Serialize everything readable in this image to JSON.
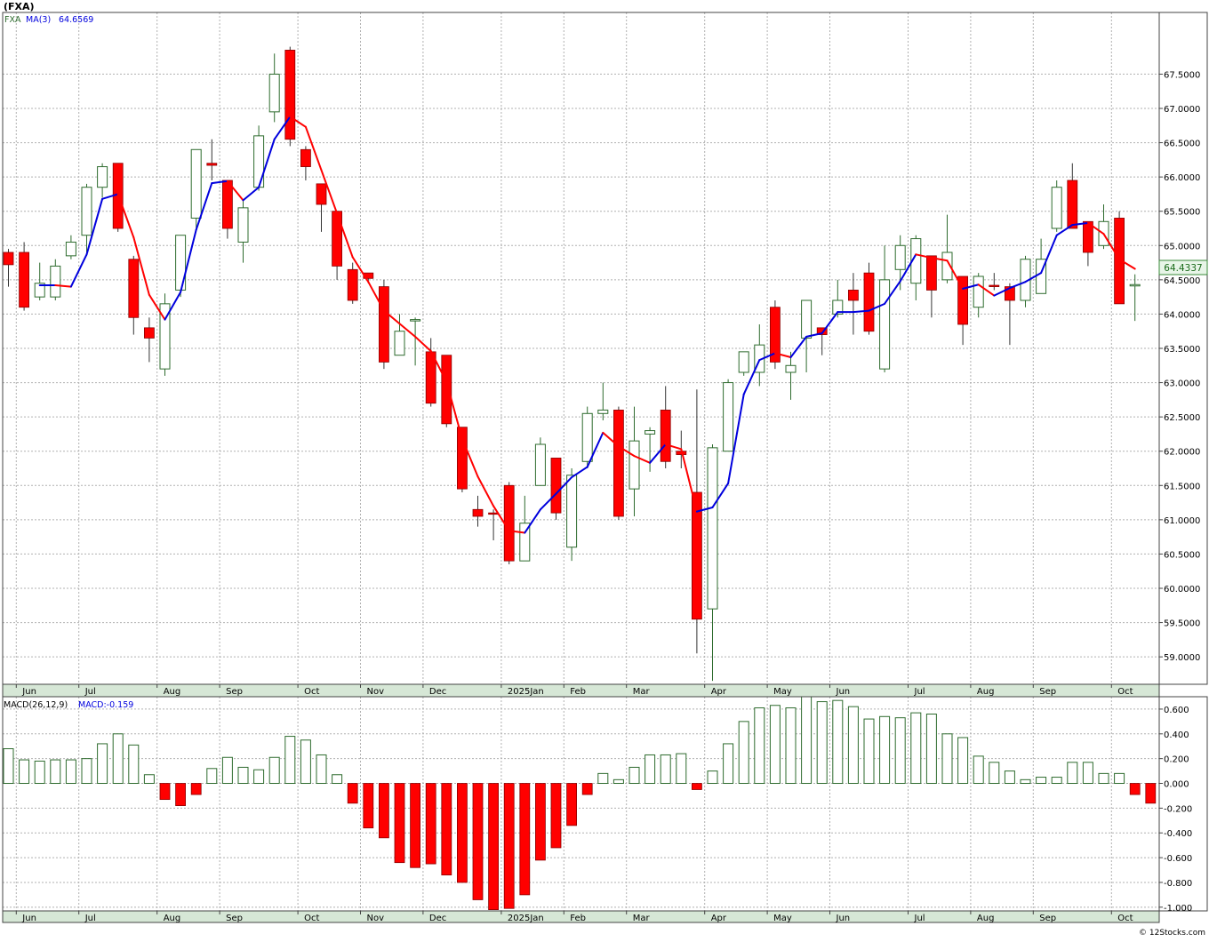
{
  "header": {
    "ticker": "(FXA)",
    "legend_symbol": "FXA",
    "legend_ma_label": "MA(3)",
    "legend_ma_value": "64.6569",
    "macd_label": "MACD(26,12,9)",
    "macd_value_label": "MACD:-0.159",
    "last_price": "64.4337",
    "watermark": "© 12Stocks.com"
  },
  "colors": {
    "up": "#2e6b2e",
    "down": "#ff0000",
    "ma_up": "#0000dd",
    "ma_down": "#ff0000",
    "grid": "#b0b0b0",
    "axis_bg": "#d6e7d6",
    "price_badge_bg": "#e8f5e8",
    "price_badge_text": "#1a6b1a"
  },
  "chart_data": [
    {
      "type": "candlestick",
      "title": "(FXA)",
      "interval": "weekly",
      "ylim": [
        58.6,
        68.4
      ],
      "y_ticks": [
        59.0,
        59.5,
        60.0,
        60.5,
        61.0,
        61.5,
        62.0,
        62.5,
        63.0,
        63.5,
        64.0,
        64.5,
        65.0,
        65.5,
        66.0,
        66.5,
        67.0,
        67.5
      ],
      "y_tick_labels": [
        "59.0000",
        "59.5000",
        "60.0000",
        "60.5000",
        "61.0000",
        "61.5000",
        "62.0000",
        "62.5000",
        "63.0000",
        "63.5000",
        "64.0000",
        "64.5000",
        "65.0000",
        "65.5000",
        "66.0000",
        "66.5000",
        "67.0000",
        "67.5000"
      ],
      "x_labels": [
        "Jun",
        "Jul",
        "Aug",
        "Sep",
        "Oct",
        "Nov",
        "Dec",
        "2025Jan",
        "Feb",
        "Mar",
        "Apr",
        "May",
        "Jun",
        "Jul",
        "Aug",
        "Sep",
        "Oct"
      ],
      "x_label_bars": [
        1,
        5,
        10,
        14,
        19,
        23,
        27,
        32,
        36,
        40,
        45,
        49,
        53,
        58,
        62,
        66,
        71
      ],
      "candles": [
        {
          "o": 64.9,
          "h": 64.95,
          "l": 64.4,
          "c": 64.72
        },
        {
          "o": 64.9,
          "h": 65.05,
          "l": 64.05,
          "c": 64.1
        },
        {
          "o": 64.25,
          "h": 64.75,
          "l": 64.2,
          "c": 64.45
        },
        {
          "o": 64.25,
          "h": 64.8,
          "l": 64.2,
          "c": 64.7
        },
        {
          "o": 64.85,
          "h": 65.15,
          "l": 64.8,
          "c": 65.05
        },
        {
          "o": 65.15,
          "h": 65.9,
          "l": 64.85,
          "c": 65.85
        },
        {
          "o": 65.85,
          "h": 66.2,
          "l": 65.7,
          "c": 66.15
        },
        {
          "o": 66.2,
          "h": 66.2,
          "l": 65.2,
          "c": 65.25
        },
        {
          "o": 64.8,
          "h": 64.85,
          "l": 63.7,
          "c": 63.95
        },
        {
          "o": 63.8,
          "h": 63.95,
          "l": 63.3,
          "c": 63.65
        },
        {
          "o": 63.2,
          "h": 64.3,
          "l": 63.1,
          "c": 64.15
        },
        {
          "o": 64.35,
          "h": 65.15,
          "l": 64.25,
          "c": 65.15
        },
        {
          "o": 65.4,
          "h": 66.4,
          "l": 65.25,
          "c": 66.4
        },
        {
          "o": 66.2,
          "h": 66.55,
          "l": 65.95,
          "c": 66.17
        },
        {
          "o": 65.95,
          "h": 65.95,
          "l": 65.1,
          "c": 65.25
        },
        {
          "o": 65.05,
          "h": 65.65,
          "l": 64.75,
          "c": 65.55
        },
        {
          "o": 65.85,
          "h": 66.75,
          "l": 65.8,
          "c": 66.6
        },
        {
          "o": 66.95,
          "h": 67.8,
          "l": 66.8,
          "c": 67.5
        },
        {
          "o": 67.85,
          "h": 67.9,
          "l": 66.45,
          "c": 66.55
        },
        {
          "o": 66.4,
          "h": 66.45,
          "l": 65.95,
          "c": 66.15
        },
        {
          "o": 65.9,
          "h": 65.9,
          "l": 65.2,
          "c": 65.6
        },
        {
          "o": 65.5,
          "h": 65.5,
          "l": 64.5,
          "c": 64.7
        },
        {
          "o": 64.65,
          "h": 64.75,
          "l": 64.15,
          "c": 64.2
        },
        {
          "o": 64.6,
          "h": 64.6,
          "l": 64.45,
          "c": 64.52
        },
        {
          "o": 64.4,
          "h": 64.5,
          "l": 63.2,
          "c": 63.3
        },
        {
          "o": 63.4,
          "h": 64.0,
          "l": 63.4,
          "c": 63.75
        },
        {
          "o": 63.9,
          "h": 63.95,
          "l": 63.25,
          "c": 63.92
        },
        {
          "o": 63.45,
          "h": 63.65,
          "l": 62.65,
          "c": 62.7
        },
        {
          "o": 63.4,
          "h": 63.4,
          "l": 62.35,
          "c": 62.4
        },
        {
          "o": 62.35,
          "h": 62.35,
          "l": 61.4,
          "c": 61.45
        },
        {
          "o": 61.15,
          "h": 61.35,
          "l": 60.9,
          "c": 61.05
        },
        {
          "o": 61.1,
          "h": 61.15,
          "l": 60.7,
          "c": 61.08
        },
        {
          "o": 61.5,
          "h": 61.55,
          "l": 60.35,
          "c": 60.4
        },
        {
          "o": 60.4,
          "h": 61.35,
          "l": 60.4,
          "c": 60.95
        },
        {
          "o": 61.5,
          "h": 62.2,
          "l": 61.5,
          "c": 62.1
        },
        {
          "o": 61.9,
          "h": 61.9,
          "l": 61.0,
          "c": 61.1
        },
        {
          "o": 60.6,
          "h": 61.75,
          "l": 60.4,
          "c": 61.65
        },
        {
          "o": 61.85,
          "h": 62.65,
          "l": 61.75,
          "c": 62.55
        },
        {
          "o": 62.55,
          "h": 63.0,
          "l": 62.45,
          "c": 62.6
        },
        {
          "o": 62.6,
          "h": 62.65,
          "l": 61.0,
          "c": 61.05
        },
        {
          "o": 61.45,
          "h": 62.65,
          "l": 61.05,
          "c": 62.15
        },
        {
          "o": 62.25,
          "h": 62.35,
          "l": 61.7,
          "c": 62.3
        },
        {
          "o": 62.6,
          "h": 62.95,
          "l": 61.75,
          "c": 61.85
        },
        {
          "o": 62.0,
          "h": 62.3,
          "l": 61.75,
          "c": 61.95
        },
        {
          "o": 61.4,
          "h": 62.9,
          "l": 59.05,
          "c": 59.55
        },
        {
          "o": 59.7,
          "h": 62.1,
          "l": 58.65,
          "c": 62.05
        },
        {
          "o": 62.0,
          "h": 63.05,
          "l": 62.0,
          "c": 63.0
        },
        {
          "o": 63.15,
          "h": 63.45,
          "l": 63.1,
          "c": 63.45
        },
        {
          "o": 63.15,
          "h": 63.85,
          "l": 62.95,
          "c": 63.55
        },
        {
          "o": 64.1,
          "h": 64.2,
          "l": 63.2,
          "c": 63.3
        },
        {
          "o": 63.15,
          "h": 63.45,
          "l": 62.75,
          "c": 63.25
        },
        {
          "o": 63.65,
          "h": 64.2,
          "l": 63.15,
          "c": 64.2
        },
        {
          "o": 63.8,
          "h": 63.8,
          "l": 63.4,
          "c": 63.7
        },
        {
          "o": 64.0,
          "h": 64.5,
          "l": 63.95,
          "c": 64.2
        },
        {
          "o": 64.35,
          "h": 64.6,
          "l": 63.7,
          "c": 64.2
        },
        {
          "o": 64.6,
          "h": 64.75,
          "l": 63.7,
          "c": 63.75
        },
        {
          "o": 63.2,
          "h": 65.0,
          "l": 63.15,
          "c": 64.5
        },
        {
          "o": 64.65,
          "h": 65.15,
          "l": 64.35,
          "c": 65.0
        },
        {
          "o": 64.45,
          "h": 65.15,
          "l": 64.2,
          "c": 65.1
        },
        {
          "o": 64.85,
          "h": 64.85,
          "l": 63.95,
          "c": 64.35
        },
        {
          "o": 64.5,
          "h": 65.45,
          "l": 64.45,
          "c": 64.9
        },
        {
          "o": 64.55,
          "h": 64.55,
          "l": 63.55,
          "c": 63.85
        },
        {
          "o": 64.1,
          "h": 64.6,
          "l": 63.95,
          "c": 64.55
        },
        {
          "o": 64.42,
          "h": 64.6,
          "l": 64.35,
          "c": 64.4
        },
        {
          "o": 64.4,
          "h": 64.45,
          "l": 63.55,
          "c": 64.2
        },
        {
          "o": 64.2,
          "h": 64.85,
          "l": 64.1,
          "c": 64.8
        },
        {
          "o": 64.3,
          "h": 65.1,
          "l": 64.3,
          "c": 64.8
        },
        {
          "o": 65.25,
          "h": 65.95,
          "l": 65.2,
          "c": 65.85
        },
        {
          "o": 65.95,
          "h": 66.2,
          "l": 65.25,
          "c": 65.25
        },
        {
          "o": 65.35,
          "h": 65.35,
          "l": 64.7,
          "c": 64.9
        },
        {
          "o": 65.0,
          "h": 65.6,
          "l": 64.95,
          "c": 65.35
        },
        {
          "o": 65.4,
          "h": 65.5,
          "l": 64.15,
          "c": 64.15
        },
        {
          "o": 64.43,
          "h": 64.58,
          "l": 63.9,
          "c": 64.43
        }
      ],
      "ma3": [
        null,
        null,
        64.42,
        64.42,
        64.4,
        64.87,
        65.68,
        65.75,
        65.12,
        64.28,
        63.92,
        64.32,
        65.23,
        65.91,
        65.94,
        65.66,
        65.85,
        66.55,
        66.88,
        66.73,
        66.1,
        65.47,
        64.83,
        64.47,
        64.05,
        63.86,
        63.67,
        63.46,
        63.01,
        62.18,
        61.63,
        61.2,
        60.84,
        60.81,
        61.15,
        61.38,
        61.62,
        61.77,
        62.27,
        62.07,
        61.93,
        61.83,
        62.1,
        62.03,
        61.12,
        61.18,
        61.53,
        62.83,
        63.33,
        63.43,
        63.37,
        63.67,
        63.72,
        64.03,
        64.03,
        64.05,
        64.15,
        64.48,
        64.87,
        64.82,
        64.78,
        64.37,
        64.43,
        64.27,
        64.38,
        64.47,
        64.6,
        65.15,
        65.3,
        65.33,
        65.17,
        64.8,
        64.66
      ],
      "last_price": 64.4337
    },
    {
      "type": "bar",
      "title": "MACD(26,12,9)",
      "ylim": [
        -1.03,
        0.7
      ],
      "y_ticks": [
        0.6,
        0.4,
        0.2,
        0.0,
        -0.2,
        -0.4,
        -0.6,
        -0.8,
        -1.0
      ],
      "y_tick_labels": [
        "0.600",
        "0.400",
        "0.200",
        "0.000",
        "-0.200",
        "-0.400",
        "-0.600",
        "-0.800",
        "-1.000"
      ],
      "x_labels": [
        "Jun",
        "Jul",
        "Aug",
        "Sep",
        "Oct",
        "Nov",
        "Dec",
        "2025Jan",
        "Feb",
        "Mar",
        "Apr",
        "May",
        "Jun",
        "Jul",
        "Aug",
        "Sep",
        "Oct"
      ],
      "x_label_bars": [
        1,
        5,
        10,
        14,
        19,
        23,
        27,
        32,
        36,
        40,
        45,
        49,
        53,
        58,
        62,
        66,
        71
      ],
      "values": [
        0.28,
        0.19,
        0.18,
        0.19,
        0.19,
        0.2,
        0.32,
        0.4,
        0.31,
        0.07,
        -0.13,
        -0.18,
        -0.09,
        0.12,
        0.21,
        0.13,
        0.11,
        0.21,
        0.38,
        0.35,
        0.23,
        0.07,
        -0.16,
        -0.36,
        -0.44,
        -0.64,
        -0.68,
        -0.65,
        -0.74,
        -0.8,
        -0.94,
        -1.02,
        -1.01,
        -0.9,
        -0.62,
        -0.52,
        -0.34,
        -0.09,
        0.08,
        0.03,
        0.13,
        0.23,
        0.23,
        0.24,
        -0.05,
        0.1,
        0.32,
        0.5,
        0.61,
        0.63,
        0.61,
        0.7,
        0.66,
        0.67,
        0.62,
        0.52,
        0.54,
        0.53,
        0.57,
        0.56,
        0.4,
        0.37,
        0.22,
        0.17,
        0.1,
        0.03,
        0.05,
        0.05,
        0.17,
        0.17,
        0.08,
        0.08,
        -0.09,
        -0.16
      ]
    }
  ]
}
